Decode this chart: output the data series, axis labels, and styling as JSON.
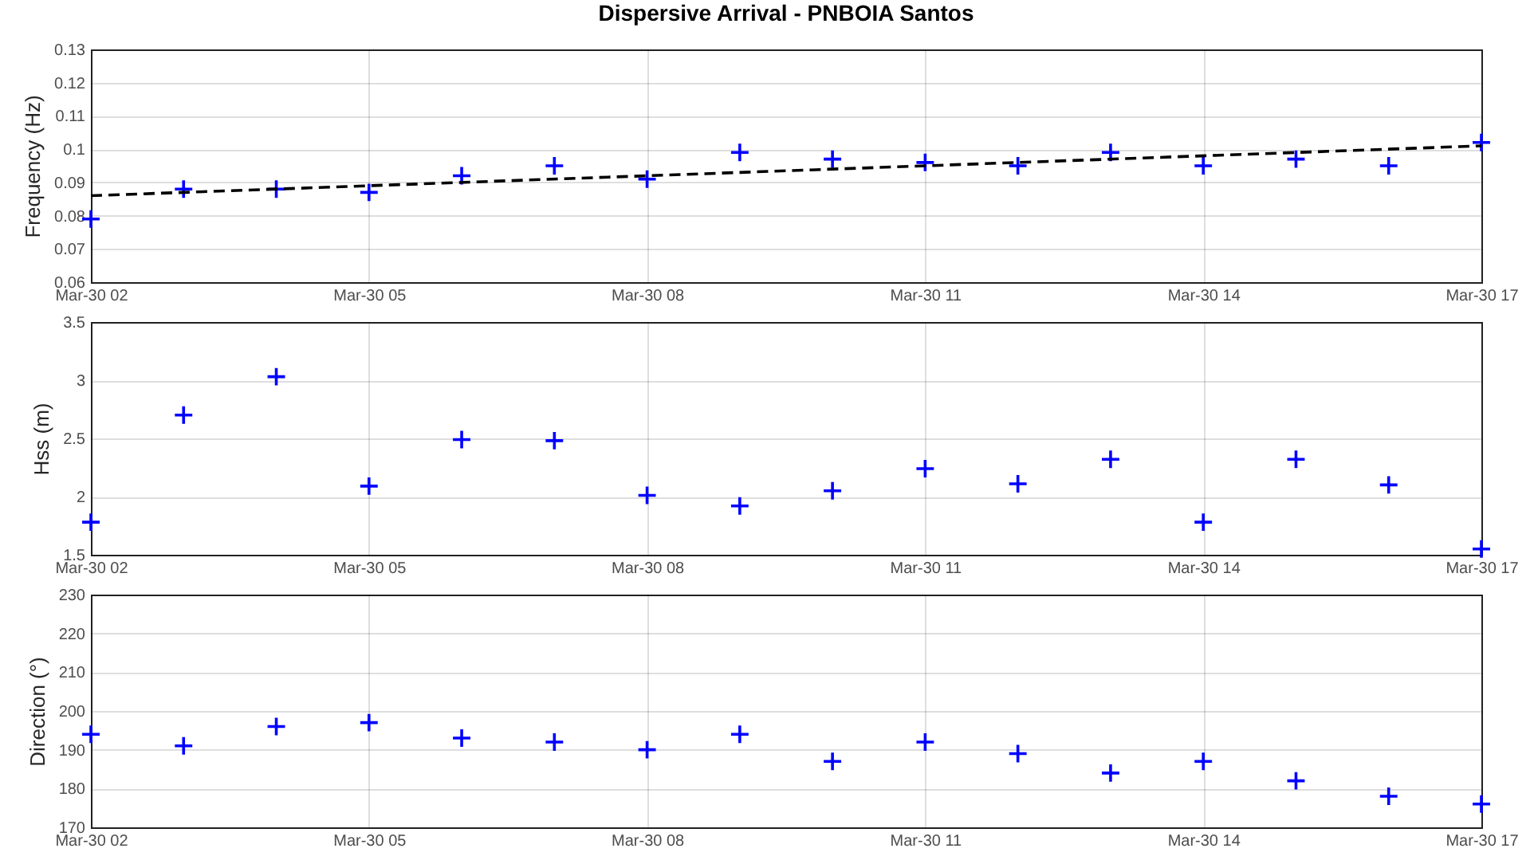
{
  "chart_data": [
    {
      "type": "scatter",
      "title": "Dispersive Arrival - PNBOIA Santos",
      "ylabel": "Frequency (Hz)",
      "x": [
        "--03-30T02:00",
        "--03-30T03:00",
        "--03-30T04:00",
        "--03-30T05:00",
        "--03-30T06:00",
        "--03-30T07:00",
        "--03-30T08:00",
        "--03-30T09:00",
        "--03-30T10:00",
        "--03-30T11:00",
        "--03-30T12:00",
        "--03-30T13:00",
        "--03-30T14:00",
        "--03-30T15:00",
        "--03-30T16:00",
        "--03-30T17:00"
      ],
      "xlim": [
        "--03-30T02:00",
        "--03-30T17:00"
      ],
      "xticks": [
        {
          "value": "--03-30T02:00",
          "label": "Mar-30 02"
        },
        {
          "value": "--03-30T05:00",
          "label": "Mar-30 05"
        },
        {
          "value": "--03-30T08:00",
          "label": "Mar-30 08"
        },
        {
          "value": "--03-30T11:00",
          "label": "Mar-30 11"
        },
        {
          "value": "--03-30T14:00",
          "label": "Mar-30 14"
        },
        {
          "value": "--03-30T17:00",
          "label": "Mar-30 17"
        }
      ],
      "ylim": [
        0.06,
        0.13
      ],
      "yticks": [
        0.06,
        0.07,
        0.08,
        0.09,
        0.1,
        0.11,
        0.12,
        0.13
      ],
      "grid": true,
      "series": [
        {
          "color": "#0000ff",
          "marker": "cross",
          "values": [
            0.079,
            0.088,
            0.088,
            0.087,
            0.092,
            0.095,
            0.091,
            0.099,
            0.097,
            0.096,
            0.095,
            0.099,
            0.095,
            0.097,
            0.095,
            0.102
          ]
        },
        {
          "type": "line",
          "x": [
            "--03-30T02:00",
            "--03-30T17:00"
          ],
          "values": [
            0.086,
            0.101
          ],
          "color": "#000000",
          "line_style": "dashed"
        }
      ]
    },
    {
      "type": "scatter",
      "ylabel": "Hss (m)",
      "x": [
        "--03-30T02:00",
        "--03-30T03:00",
        "--03-30T04:00",
        "--03-30T05:00",
        "--03-30T06:00",
        "--03-30T07:00",
        "--03-30T08:00",
        "--03-30T09:00",
        "--03-30T10:00",
        "--03-30T11:00",
        "--03-30T12:00",
        "--03-30T13:00",
        "--03-30T14:00",
        "--03-30T15:00",
        "--03-30T16:00",
        "--03-30T17:00"
      ],
      "xlim": [
        "--03-30T02:00",
        "--03-30T17:00"
      ],
      "xticks": [
        {
          "value": "--03-30T02:00",
          "label": "Mar-30 02"
        },
        {
          "value": "--03-30T05:00",
          "label": "Mar-30 05"
        },
        {
          "value": "--03-30T08:00",
          "label": "Mar-30 08"
        },
        {
          "value": "--03-30T11:00",
          "label": "Mar-30 11"
        },
        {
          "value": "--03-30T14:00",
          "label": "Mar-30 14"
        },
        {
          "value": "--03-30T17:00",
          "label": "Mar-30 17"
        }
      ],
      "ylim": [
        1.5,
        3.5
      ],
      "yticks": [
        1.5,
        2,
        2.5,
        3,
        3.5
      ],
      "grid": true,
      "marker": "cross",
      "series": [
        {
          "color": "#0000ff",
          "values": [
            1.78,
            2.7,
            3.03,
            2.09,
            2.49,
            2.48,
            2.01,
            1.92,
            2.05,
            2.24,
            2.11,
            2.32,
            1.78,
            2.32,
            2.1,
            1.55
          ]
        }
      ]
    },
    {
      "type": "scatter",
      "ylabel": "Direction (°)",
      "x": [
        "--03-30T02:00",
        "--03-30T03:00",
        "--03-30T04:00",
        "--03-30T05:00",
        "--03-30T06:00",
        "--03-30T07:00",
        "--03-30T08:00",
        "--03-30T09:00",
        "--03-30T10:00",
        "--03-30T11:00",
        "--03-30T12:00",
        "--03-30T13:00",
        "--03-30T14:00",
        "--03-30T15:00",
        "--03-30T16:00",
        "--03-30T17:00"
      ],
      "xlim": [
        "--03-30T02:00",
        "--03-30T17:00"
      ],
      "xticks": [
        {
          "value": "--03-30T02:00",
          "label": "Mar-30 02"
        },
        {
          "value": "--03-30T05:00",
          "label": "Mar-30 05"
        },
        {
          "value": "--03-30T08:00",
          "label": "Mar-30 08"
        },
        {
          "value": "--03-30T11:00",
          "label": "Mar-30 11"
        },
        {
          "value": "--03-30T14:00",
          "label": "Mar-30 14"
        },
        {
          "value": "--03-30T17:00",
          "label": "Mar-30 17"
        }
      ],
      "ylim": [
        170,
        230
      ],
      "yticks": [
        170,
        180,
        190,
        200,
        210,
        220,
        230
      ],
      "grid": true,
      "marker": "cross",
      "series": [
        {
          "color": "#0000ff",
          "values": [
            194,
            191,
            196,
            197,
            193,
            192,
            190,
            194,
            187,
            192,
            189,
            184,
            187,
            182,
            178,
            176
          ]
        }
      ]
    }
  ]
}
